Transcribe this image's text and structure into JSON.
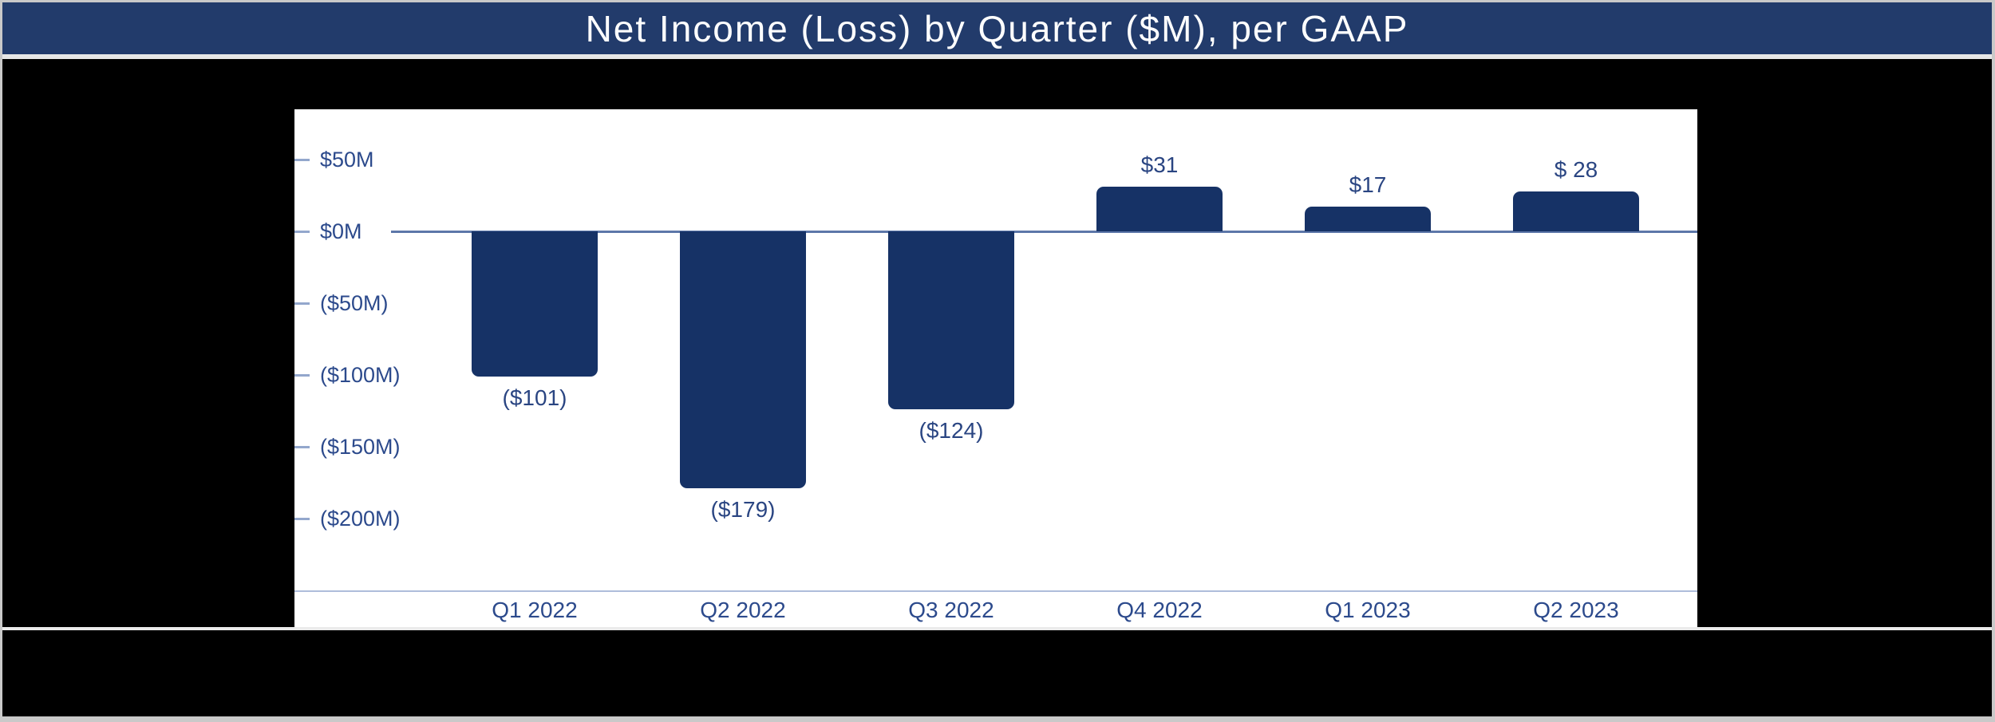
{
  "title": "Net Income (Loss) by Quarter ($M), per GAAP",
  "colors": {
    "title_bg": "#223B6B",
    "title_text": "#FFFFFF",
    "slide_bg": "#000000",
    "screen_edge": "#C9C9C9",
    "panel_bg": "#FFFFFF",
    "bar_fill": "#163266",
    "axis_label_text": "#2C4A8C",
    "data_label_text": "#2A4582",
    "zero_line": "#5D77A9",
    "bottom_axis_line": "#AEBDDB",
    "tick_dash": "#93A7CC"
  },
  "chart_data": {
    "type": "bar",
    "title": "Net Income (Loss) by Quarter ($M), per GAAP",
    "xlabel": "",
    "ylabel": "",
    "categories": [
      "Q1 2022",
      "Q2 2022",
      "Q3 2022",
      "Q4 2022",
      "Q1 2023",
      "Q2 2023"
    ],
    "values": [
      -101,
      -179,
      -124,
      31,
      17,
      28
    ],
    "data_labels": [
      "($101)",
      "($179)",
      "($124)",
      "$31",
      "$17",
      "$ 28"
    ],
    "y_ticks": [
      {
        "label": "$50M",
        "value": 50
      },
      {
        "label": "$0M",
        "value": 0
      },
      {
        "label": "($50M)",
        "value": -50
      },
      {
        "label": "($100M)",
        "value": -100
      },
      {
        "label": "($150M)",
        "value": -150
      },
      {
        "label": "($200M)",
        "value": -200
      }
    ],
    "ylim": [
      -275,
      85
    ],
    "grid": false,
    "legend": false,
    "units": "$M (GAAP)"
  }
}
